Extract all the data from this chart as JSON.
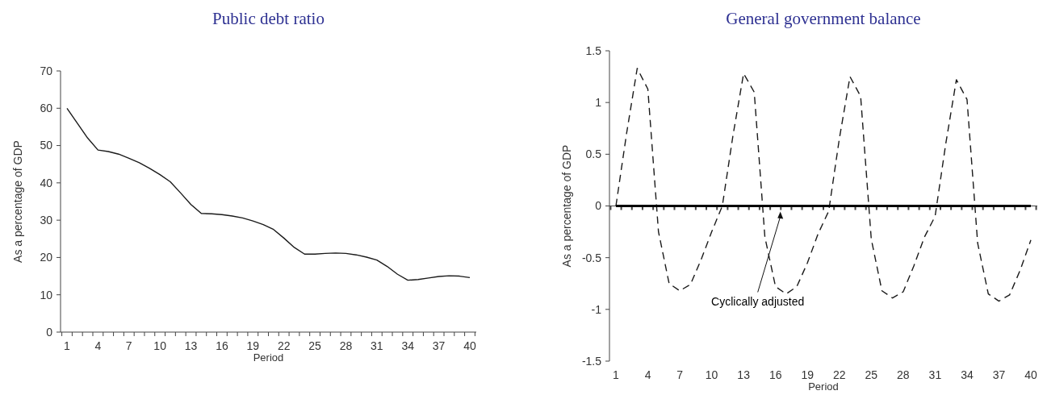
{
  "chart_data": [
    {
      "type": "line",
      "title": "Public debt ratio",
      "xlabel": "Period",
      "ylabel": "As a percentage of GDP",
      "categories": [
        "1",
        null,
        null,
        "4",
        null,
        null,
        "7",
        null,
        null,
        "10",
        null,
        null,
        "13",
        null,
        null,
        "16",
        null,
        null,
        "19",
        null,
        null,
        "22",
        null,
        null,
        "25",
        null,
        null,
        "28",
        null,
        null,
        "31",
        null,
        null,
        "34",
        null,
        null,
        "37",
        null,
        null,
        "40"
      ],
      "series": [
        {
          "color": "#1a1a1a",
          "line_style": "solid",
          "values": [
            60,
            56,
            52,
            48.8,
            48.4,
            47.7,
            46.6,
            45.4,
            43.9,
            42.2,
            40.3,
            37.3,
            34.2,
            31.8,
            31.7,
            31.5,
            31.1,
            30.6,
            29.8,
            28.8,
            27.5,
            25.2,
            22.7,
            20.9,
            20.9,
            21.1,
            21.2,
            21.1,
            20.7,
            20.1,
            19.3,
            17.6,
            15.5,
            13.9,
            14.1,
            14.5,
            14.9,
            15.1,
            15.0,
            14.6
          ]
        }
      ],
      "ylim": [
        0,
        70
      ],
      "yticks": [
        0,
        10,
        20,
        30,
        40,
        50,
        60,
        70
      ],
      "marker": "none"
    },
    {
      "type": "line",
      "title": "General government balance",
      "xlabel": "Period",
      "ylabel": "As a percentage of GDP",
      "categories": [
        "1",
        null,
        null,
        "4",
        null,
        null,
        "7",
        null,
        null,
        "10",
        null,
        null,
        "13",
        null,
        null,
        "16",
        null,
        null,
        "19",
        null,
        null,
        "22",
        null,
        null,
        "25",
        null,
        null,
        "28",
        null,
        null,
        "31",
        null,
        null,
        "34",
        null,
        null,
        "37",
        null,
        null,
        "40"
      ],
      "series": [
        {
          "color": "#1a1a1a",
          "line_style": "dashed",
          "values": [
            0,
            0.7,
            1.33,
            1.13,
            -0.25,
            -0.75,
            -0.82,
            -0.76,
            -0.52,
            -0.25,
            0,
            0.68,
            1.28,
            1.1,
            -0.3,
            -0.78,
            -0.85,
            -0.78,
            -0.55,
            -0.27,
            -0.05,
            0.65,
            1.25,
            1.06,
            -0.32,
            -0.82,
            -0.89,
            -0.83,
            -0.58,
            -0.3,
            -0.1,
            0.6,
            1.22,
            1.03,
            -0.36,
            -0.85,
            -0.92,
            -0.86,
            -0.62,
            -0.33
          ]
        },
        {
          "name": "Cyclically adjusted",
          "color": "#000000",
          "line_style": "solid",
          "values": [
            0,
            0,
            0,
            0,
            0,
            0,
            0,
            0,
            0,
            0,
            0,
            0,
            0,
            0,
            0,
            0,
            0,
            0,
            0,
            0,
            0,
            0,
            0,
            0,
            0,
            0,
            0,
            0,
            0,
            0,
            0,
            0,
            0,
            0,
            0,
            0,
            0,
            0,
            0,
            0
          ]
        }
      ],
      "ylim": [
        -1.5,
        1.5
      ],
      "yticks": [
        -1.5,
        -1,
        -0.5,
        0,
        0.5,
        1,
        1.5
      ],
      "marker": "none"
    }
  ]
}
